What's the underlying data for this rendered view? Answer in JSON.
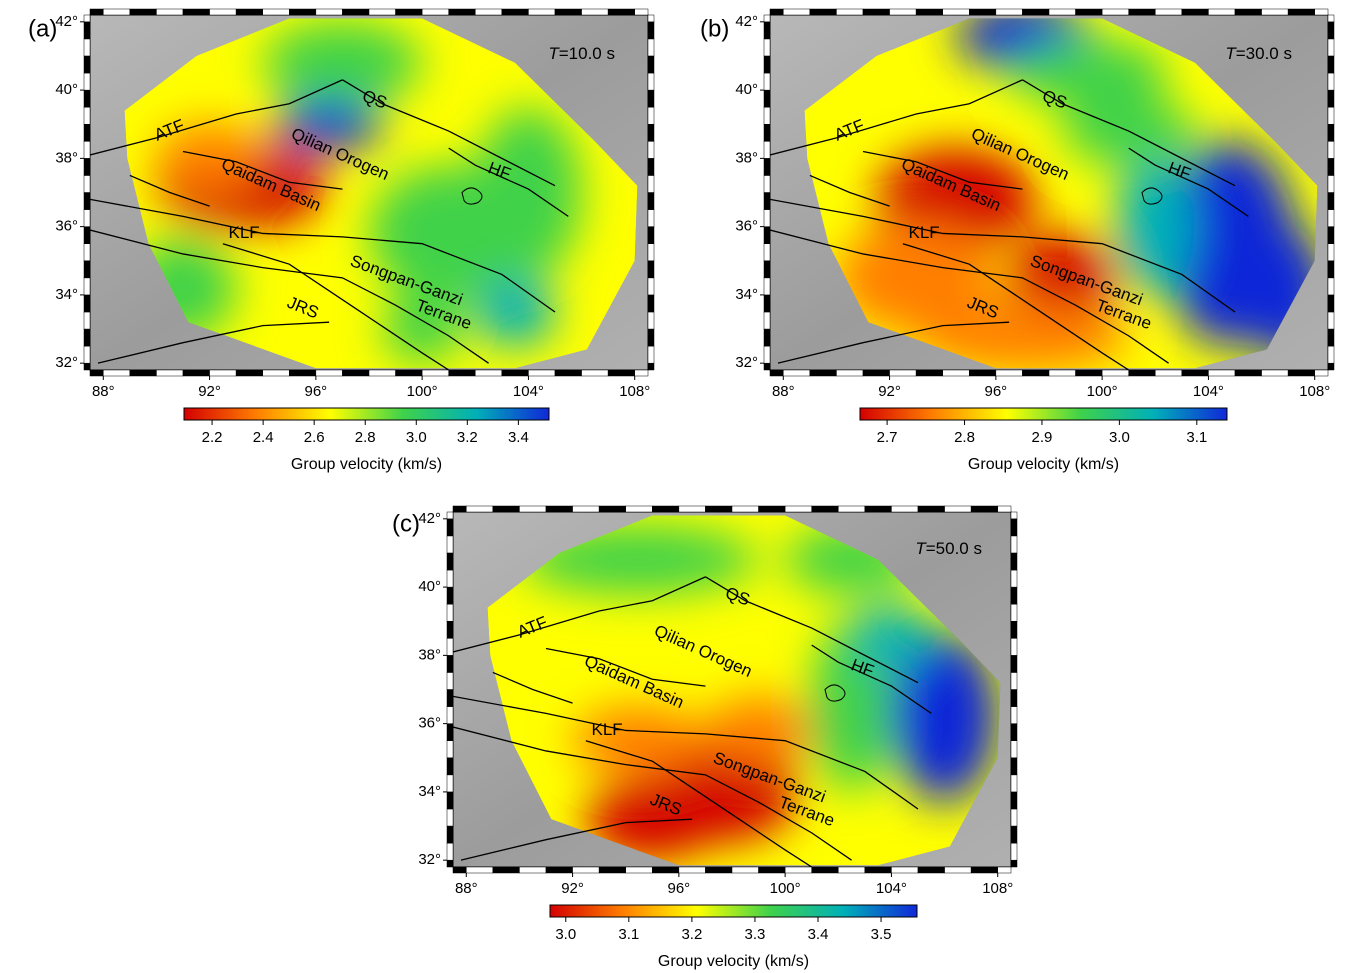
{
  "panels": [
    {
      "label": "(a)",
      "period": {
        "symbol": "T",
        "value": "=10.0 s"
      },
      "map": {
        "xlim": [
          87.5,
          108.5
        ],
        "ylim": [
          31.8,
          42.2
        ],
        "xticks": [
          {
            "value": 88,
            "label": "88°"
          },
          {
            "value": 92,
            "label": "92°"
          },
          {
            "value": 96,
            "label": "96°"
          },
          {
            "value": 100,
            "label": "100°"
          },
          {
            "value": 104,
            "label": "104°"
          },
          {
            "value": 108,
            "label": "108°"
          }
        ],
        "yticks": [
          {
            "value": 32,
            "label": "32°"
          },
          {
            "value": 34,
            "label": "34°"
          },
          {
            "value": 36,
            "label": "36°"
          },
          {
            "value": 38,
            "label": "38°"
          },
          {
            "value": 40,
            "label": "40°"
          },
          {
            "value": 42,
            "label": "42°"
          }
        ]
      },
      "region_labels": [
        "ATF",
        "QS",
        "Qilian Orogen",
        "HF",
        "Qaidam Basin",
        "KLF",
        "Songpan-Ganzi",
        "JRS",
        "Terrane"
      ],
      "colorbar": {
        "colors": [
          "#d40000",
          "#ff7f00",
          "#ffff00",
          "#3fd24a",
          "#00b0b8",
          "#1028d8"
        ],
        "clim": [
          2.09,
          3.52
        ],
        "ticks": [
          2.2,
          2.4,
          2.6,
          2.8,
          {
            "value": 3,
            "label": "3.0"
          },
          3.2,
          3.4
        ],
        "label": "Group velocity (km/s)"
      }
    },
    {
      "label": "(b)",
      "period": {
        "symbol": "T",
        "value": "=30.0 s"
      },
      "map": {
        "xlim": [
          87.5,
          108.5
        ],
        "ylim": [
          31.8,
          42.2
        ],
        "xticks": [
          {
            "value": 88,
            "label": "88°"
          },
          {
            "value": 92,
            "label": "92°"
          },
          {
            "value": 96,
            "label": "96°"
          },
          {
            "value": 100,
            "label": "100°"
          },
          {
            "value": 104,
            "label": "104°"
          },
          {
            "value": 108,
            "label": "108°"
          }
        ],
        "yticks": [
          {
            "value": 32,
            "label": "32°"
          },
          {
            "value": 34,
            "label": "34°"
          },
          {
            "value": 36,
            "label": "36°"
          },
          {
            "value": 38,
            "label": "38°"
          },
          {
            "value": 40,
            "label": "40°"
          },
          {
            "value": 42,
            "label": "42°"
          }
        ]
      },
      "region_labels": [
        "ATF",
        "QS",
        "Qilian Orogen",
        "HF",
        "Qaidam Basin",
        "KLF",
        "Songpan-Ganzi",
        "JRS",
        "Terrane"
      ],
      "colorbar": {
        "colors": [
          "#d40000",
          "#ff7f00",
          "#ffff00",
          "#3fd24a",
          "#00b0b8",
          "#1028d8"
        ],
        "clim": [
          2.665,
          3.139
        ],
        "ticks": [
          2.7,
          2.8,
          2.9,
          {
            "value": 3,
            "label": "3.0"
          },
          3.1
        ],
        "label": "Group velocity (km/s)"
      }
    },
    {
      "label": "(c)",
      "period": {
        "symbol": "T",
        "value": "=50.0 s"
      },
      "map": {
        "xlim": [
          87.5,
          108.5
        ],
        "ylim": [
          31.8,
          42.2
        ],
        "xticks": [
          {
            "value": 88,
            "label": "88°"
          },
          {
            "value": 92,
            "label": "92°"
          },
          {
            "value": 96,
            "label": "96°"
          },
          {
            "value": 100,
            "label": "100°"
          },
          {
            "value": 104,
            "label": "104°"
          },
          {
            "value": 108,
            "label": "108°"
          }
        ],
        "yticks": [
          {
            "value": 32,
            "label": "32°"
          },
          {
            "value": 34,
            "label": "34°"
          },
          {
            "value": 36,
            "label": "36°"
          },
          {
            "value": 38,
            "label": "38°"
          },
          {
            "value": 40,
            "label": "40°"
          },
          {
            "value": 42,
            "label": "42°"
          }
        ]
      },
      "region_labels": [
        "ATF",
        "QS",
        "Qilian Orogen",
        "HF",
        "Qaidam Basin",
        "KLF",
        "Songpan-Ganzi",
        "JRS",
        "Terrane"
      ],
      "colorbar": {
        "colors": [
          "#d40000",
          "#ff7f00",
          "#ffff00",
          "#3fd24a",
          "#00b0b8",
          "#1028d8"
        ],
        "clim": [
          2.975,
          3.557
        ],
        "ticks": [
          {
            "value": 3,
            "label": "3.0"
          },
          3.1,
          3.2,
          3.3,
          3.4,
          3.5
        ],
        "label": "Group velocity (km/s)"
      }
    }
  ]
}
